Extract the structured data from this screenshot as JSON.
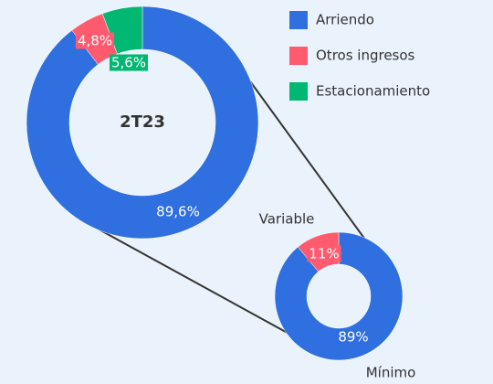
{
  "chart_data": [
    {
      "type": "donut",
      "title": "2T23",
      "categories": [
        "Arriendo",
        "Otros ingresos",
        "Estacionamiento"
      ],
      "values": [
        89.6,
        4.8,
        5.6
      ],
      "value_labels": [
        "89,6%",
        "4,8%",
        "5,6%"
      ],
      "colors": [
        "#2f6fe0",
        "#ff5a6e",
        "#00b872"
      ]
    },
    {
      "type": "donut",
      "categories": [
        "Mínimo",
        "Variable"
      ],
      "values": [
        89,
        11
      ],
      "value_labels": [
        "89%",
        "11%"
      ],
      "colors": [
        "#2f6fe0",
        "#ff5a6e"
      ]
    }
  ]
}
